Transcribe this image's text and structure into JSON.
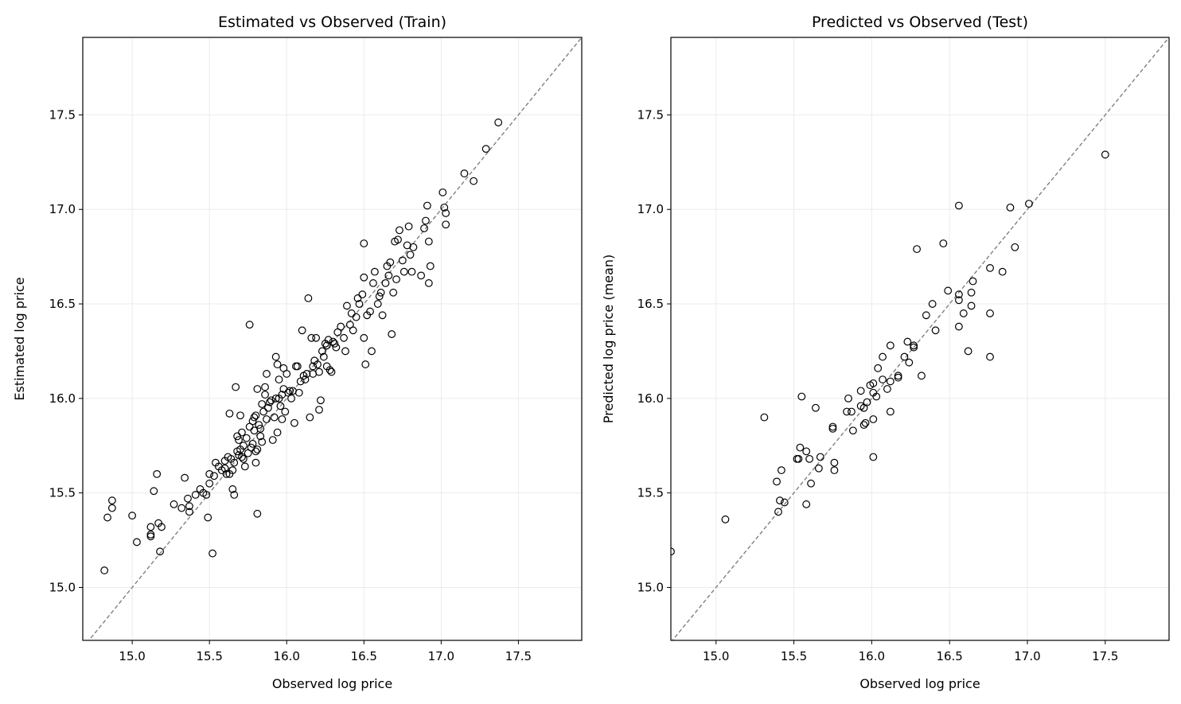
{
  "chart_data": [
    {
      "type": "scatter",
      "title": "Estimated vs Observed (Train)",
      "xlabel": "Observed log price",
      "ylabel": "Estimated log price",
      "xlim": [
        14.68,
        17.91
      ],
      "ylim": [
        14.72,
        17.91
      ],
      "xticks": [
        "15.0",
        "15.5",
        "16.0",
        "16.5",
        "17.0",
        "17.5"
      ],
      "yticks": [
        "15.0",
        "15.5",
        "16.0",
        "16.5",
        "17.0",
        "17.5"
      ],
      "grid": true,
      "reference_line": "y = x (dashed, gray)",
      "marker": "open circle",
      "colors": {
        "marker": "#000000",
        "reference": "#808080",
        "grid": "#ebebeb"
      },
      "points": [
        [
          14.82,
          15.09
        ],
        [
          14.84,
          15.37
        ],
        [
          14.87,
          15.46
        ],
        [
          14.87,
          15.42
        ],
        [
          15.0,
          15.38
        ],
        [
          15.03,
          15.24
        ],
        [
          15.12,
          15.32
        ],
        [
          15.12,
          15.28
        ],
        [
          15.12,
          15.27
        ],
        [
          15.14,
          15.51
        ],
        [
          15.16,
          15.6
        ],
        [
          15.17,
          15.34
        ],
        [
          15.19,
          15.32
        ],
        [
          15.18,
          15.19
        ],
        [
          15.27,
          15.44
        ],
        [
          15.32,
          15.42
        ],
        [
          15.34,
          15.58
        ],
        [
          15.36,
          15.47
        ],
        [
          15.37,
          15.43
        ],
        [
          15.37,
          15.4
        ],
        [
          15.41,
          15.49
        ],
        [
          15.44,
          15.52
        ],
        [
          15.46,
          15.5
        ],
        [
          15.48,
          15.49
        ],
        [
          15.49,
          15.37
        ],
        [
          15.5,
          15.6
        ],
        [
          15.52,
          15.18
        ],
        [
          15.5,
          15.55
        ],
        [
          15.53,
          15.59
        ],
        [
          15.54,
          15.66
        ],
        [
          15.56,
          15.64
        ],
        [
          15.6,
          15.67
        ],
        [
          15.6,
          15.63
        ],
        [
          15.62,
          15.69
        ],
        [
          15.63,
          15.92
        ],
        [
          15.63,
          15.6
        ],
        [
          15.65,
          15.52
        ],
        [
          15.66,
          15.49
        ],
        [
          15.65,
          15.62
        ],
        [
          15.66,
          15.66
        ],
        [
          15.67,
          16.06
        ],
        [
          15.68,
          15.72
        ],
        [
          15.68,
          15.8
        ],
        [
          15.69,
          15.78
        ],
        [
          15.7,
          15.91
        ],
        [
          15.7,
          15.73
        ],
        [
          15.71,
          15.82
        ],
        [
          15.71,
          15.69
        ],
        [
          15.72,
          15.75
        ],
        [
          15.73,
          15.64
        ],
        [
          15.75,
          15.71
        ],
        [
          15.76,
          16.39
        ],
        [
          15.77,
          15.74
        ],
        [
          15.78,
          15.76
        ],
        [
          15.78,
          15.88
        ],
        [
          15.79,
          15.83
        ],
        [
          15.8,
          15.66
        ],
        [
          15.8,
          15.72
        ],
        [
          15.8,
          15.91
        ],
        [
          15.81,
          16.05
        ],
        [
          15.81,
          15.39
        ],
        [
          15.81,
          15.73
        ],
        [
          15.82,
          15.86
        ],
        [
          15.83,
          15.8
        ],
        [
          15.84,
          15.97
        ],
        [
          15.84,
          15.77
        ],
        [
          15.85,
          15.93
        ],
        [
          15.86,
          16.02
        ],
        [
          15.86,
          16.06
        ],
        [
          15.87,
          16.13
        ],
        [
          15.87,
          15.89
        ],
        [
          15.89,
          15.98
        ],
        [
          15.91,
          15.78
        ],
        [
          15.92,
          15.9
        ],
        [
          15.93,
          16.22
        ],
        [
          15.93,
          16.0
        ],
        [
          15.94,
          15.82
        ],
        [
          15.94,
          16.18
        ],
        [
          15.95,
          16.1
        ],
        [
          15.96,
          15.96
        ],
        [
          15.97,
          15.89
        ],
        [
          15.98,
          16.16
        ],
        [
          15.98,
          16.05
        ],
        [
          15.99,
          15.93
        ],
        [
          16.0,
          16.13
        ],
        [
          16.02,
          16.04
        ],
        [
          16.04,
          16.04
        ],
        [
          16.05,
          15.87
        ],
        [
          16.06,
          16.17
        ],
        [
          16.07,
          16.17
        ],
        [
          16.08,
          16.03
        ],
        [
          16.09,
          16.09
        ],
        [
          16.1,
          16.36
        ],
        [
          16.11,
          16.12
        ],
        [
          16.12,
          16.1
        ],
        [
          16.14,
          16.53
        ],
        [
          16.15,
          15.9
        ],
        [
          16.16,
          16.32
        ],
        [
          16.17,
          16.17
        ],
        [
          16.17,
          16.13
        ],
        [
          16.19,
          16.32
        ],
        [
          16.2,
          16.18
        ],
        [
          16.21,
          15.94
        ],
        [
          16.22,
          15.99
        ],
        [
          16.23,
          16.25
        ],
        [
          16.24,
          16.22
        ],
        [
          16.25,
          16.29
        ],
        [
          16.26,
          16.17
        ],
        [
          16.27,
          16.31
        ],
        [
          16.28,
          16.15
        ],
        [
          16.29,
          16.14
        ],
        [
          16.3,
          16.3
        ],
        [
          16.31,
          16.29
        ],
        [
          16.33,
          16.35
        ],
        [
          16.35,
          16.38
        ],
        [
          16.37,
          16.32
        ],
        [
          16.38,
          16.25
        ],
        [
          16.39,
          16.49
        ],
        [
          16.41,
          16.39
        ],
        [
          16.42,
          16.45
        ],
        [
          16.43,
          16.36
        ],
        [
          16.45,
          16.43
        ],
        [
          16.46,
          16.53
        ],
        [
          16.47,
          16.5
        ],
        [
          16.49,
          16.55
        ],
        [
          16.5,
          16.82
        ],
        [
          16.5,
          16.64
        ],
        [
          16.5,
          16.32
        ],
        [
          16.51,
          16.18
        ],
        [
          16.52,
          16.44
        ],
        [
          16.54,
          16.46
        ],
        [
          16.55,
          16.25
        ],
        [
          16.56,
          16.61
        ],
        [
          16.57,
          16.67
        ],
        [
          16.59,
          16.5
        ],
        [
          16.6,
          16.54
        ],
        [
          16.61,
          16.56
        ],
        [
          16.62,
          16.44
        ],
        [
          16.64,
          16.61
        ],
        [
          16.65,
          16.7
        ],
        [
          16.66,
          16.65
        ],
        [
          16.67,
          16.72
        ],
        [
          16.68,
          16.34
        ],
        [
          16.69,
          16.56
        ],
        [
          16.7,
          16.83
        ],
        [
          16.71,
          16.63
        ],
        [
          16.72,
          16.84
        ],
        [
          16.73,
          16.89
        ],
        [
          16.75,
          16.73
        ],
        [
          16.76,
          16.67
        ],
        [
          16.78,
          16.81
        ],
        [
          16.79,
          16.91
        ],
        [
          16.8,
          16.76
        ],
        [
          16.81,
          16.67
        ],
        [
          16.82,
          16.8
        ],
        [
          16.87,
          16.65
        ],
        [
          16.89,
          16.9
        ],
        [
          16.9,
          16.94
        ],
        [
          16.91,
          17.02
        ],
        [
          16.92,
          16.61
        ],
        [
          16.92,
          16.83
        ],
        [
          16.93,
          16.7
        ],
        [
          17.01,
          17.09
        ],
        [
          17.02,
          17.01
        ],
        [
          17.03,
          16.92
        ],
        [
          17.03,
          16.98
        ],
        [
          17.15,
          17.19
        ],
        [
          17.21,
          17.15
        ],
        [
          17.29,
          17.32
        ],
        [
          17.37,
          17.46
        ],
        [
          15.58,
          15.62
        ],
        [
          15.61,
          15.6
        ],
        [
          15.64,
          15.68
        ],
        [
          15.69,
          15.7
        ],
        [
          15.72,
          15.68
        ],
        [
          15.74,
          15.79
        ],
        [
          15.76,
          15.85
        ],
        [
          15.79,
          15.9
        ],
        [
          15.83,
          15.84
        ],
        [
          15.88,
          15.95
        ],
        [
          15.9,
          15.99
        ],
        [
          15.95,
          16.0
        ],
        [
          15.97,
          16.02
        ],
        [
          16.01,
          16.03
        ],
        [
          16.03,
          16.0
        ],
        [
          16.13,
          16.13
        ],
        [
          16.18,
          16.2
        ],
        [
          16.21,
          16.14
        ],
        [
          16.26,
          16.28
        ],
        [
          16.32,
          16.27
        ]
      ]
    },
    {
      "type": "scatter",
      "title": "Predicted vs Observed (Test)",
      "xlabel": "Observed log price",
      "ylabel": "Predicted log price (mean)",
      "xlim": [
        14.71,
        17.91
      ],
      "ylim": [
        14.72,
        17.91
      ],
      "xticks": [
        "15.0",
        "15.5",
        "16.0",
        "16.5",
        "17.0",
        "17.5"
      ],
      "yticks": [
        "15.0",
        "15.5",
        "16.0",
        "16.5",
        "17.0",
        "17.5"
      ],
      "grid": true,
      "reference_line": "y = x (dashed, gray)",
      "marker": "open circle",
      "colors": {
        "marker": "#000000",
        "reference": "#808080",
        "grid": "#ebebeb"
      },
      "points": [
        [
          14.71,
          15.19
        ],
        [
          15.06,
          15.36
        ],
        [
          15.31,
          15.9
        ],
        [
          15.55,
          16.01
        ],
        [
          15.64,
          15.95
        ],
        [
          15.54,
          15.74
        ],
        [
          15.58,
          15.72
        ],
        [
          15.6,
          15.68
        ],
        [
          15.67,
          15.69
        ],
        [
          15.52,
          15.68
        ],
        [
          15.53,
          15.68
        ],
        [
          15.66,
          15.63
        ],
        [
          15.76,
          15.66
        ],
        [
          15.76,
          15.62
        ],
        [
          15.61,
          15.55
        ],
        [
          15.39,
          15.56
        ],
        [
          15.42,
          15.62
        ],
        [
          15.41,
          15.46
        ],
        [
          15.44,
          15.45
        ],
        [
          15.58,
          15.44
        ],
        [
          15.4,
          15.4
        ],
        [
          15.75,
          15.85
        ],
        [
          15.75,
          15.84
        ],
        [
          15.85,
          16.0
        ],
        [
          15.84,
          15.93
        ],
        [
          15.87,
          15.93
        ],
        [
          15.88,
          15.83
        ],
        [
          15.93,
          16.04
        ],
        [
          15.93,
          15.96
        ],
        [
          15.95,
          15.95
        ],
        [
          15.96,
          15.87
        ],
        [
          15.95,
          15.86
        ],
        [
          15.97,
          15.98
        ],
        [
          15.99,
          16.07
        ],
        [
          16.01,
          16.03
        ],
        [
          16.01,
          16.08
        ],
        [
          16.01,
          15.89
        ],
        [
          16.03,
          16.01
        ],
        [
          16.04,
          16.16
        ],
        [
          16.01,
          15.69
        ],
        [
          16.07,
          16.1
        ],
        [
          16.1,
          16.05
        ],
        [
          16.12,
          16.28
        ],
        [
          16.07,
          16.22
        ],
        [
          16.12,
          16.09
        ],
        [
          16.12,
          15.93
        ],
        [
          16.17,
          16.12
        ],
        [
          16.17,
          16.11
        ],
        [
          16.23,
          16.3
        ],
        [
          16.21,
          16.22
        ],
        [
          16.24,
          16.19
        ],
        [
          16.27,
          16.27
        ],
        [
          16.27,
          16.28
        ],
        [
          16.32,
          16.12
        ],
        [
          16.35,
          16.44
        ],
        [
          16.39,
          16.5
        ],
        [
          16.29,
          16.79
        ],
        [
          16.41,
          16.36
        ],
        [
          16.46,
          16.82
        ],
        [
          16.49,
          16.57
        ],
        [
          16.56,
          17.02
        ],
        [
          16.56,
          16.55
        ],
        [
          16.56,
          16.52
        ],
        [
          16.56,
          16.38
        ],
        [
          16.59,
          16.45
        ],
        [
          16.62,
          16.25
        ],
        [
          16.64,
          16.56
        ],
        [
          16.64,
          16.49
        ],
        [
          16.65,
          16.62
        ],
        [
          16.76,
          16.69
        ],
        [
          16.76,
          16.45
        ],
        [
          16.76,
          16.22
        ],
        [
          16.84,
          16.67
        ],
        [
          16.89,
          17.01
        ],
        [
          16.92,
          16.8
        ],
        [
          17.01,
          17.03
        ],
        [
          17.5,
          17.29
        ]
      ]
    }
  ]
}
